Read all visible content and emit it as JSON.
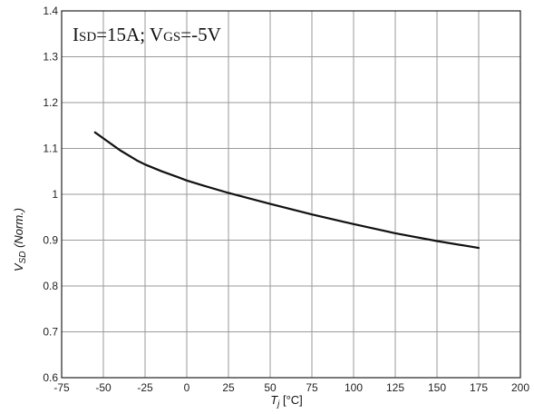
{
  "chart_data": {
    "type": "line",
    "annotation": {
      "i_main": "I",
      "i_sub": "SD",
      "i_value": "=15A; V",
      "v_sub": "GS",
      "v_value": "=-5V"
    },
    "xlabel": {
      "main": "T",
      "sub": "j",
      "unit": " [°C]"
    },
    "ylabel": {
      "main": "V",
      "sub": "SD",
      "unit": " (Norm.)"
    },
    "xlim": [
      -75,
      200
    ],
    "ylim": [
      0.6,
      1.4
    ],
    "xticks": [
      "-75",
      "-50",
      "-25",
      "0",
      "25",
      "50",
      "75",
      "100",
      "125",
      "150",
      "175",
      "200"
    ],
    "yticks": [
      "0.6",
      "0.7",
      "0.8",
      "0.9",
      "1",
      "1.1",
      "1.2",
      "1.3",
      "1.4"
    ],
    "grid": true,
    "series": [
      {
        "x": [
          -55,
          -50,
          -40,
          -30,
          -25,
          -15,
          -5,
          0,
          10,
          25,
          50,
          75,
          100,
          125,
          150,
          175
        ],
        "y": [
          1.135,
          1.122,
          1.096,
          1.074,
          1.065,
          1.05,
          1.037,
          1.03,
          1.019,
          1.003,
          0.979,
          0.956,
          0.935,
          0.915,
          0.898,
          0.883
        ]
      }
    ]
  }
}
